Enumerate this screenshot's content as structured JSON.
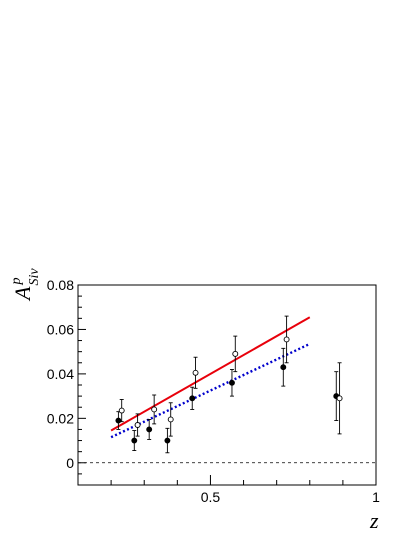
{
  "chart_data": {
    "type": "scatter",
    "xlabel": "z",
    "ylabel": {
      "main": "A",
      "superscript": "p",
      "subscript": "Siv"
    },
    "xlim": [
      0.1,
      1.0
    ],
    "ylim": [
      -0.01,
      0.08
    ],
    "x_ticks": [
      0.5,
      1
    ],
    "x_tick_labels": [
      "0.5",
      "1"
    ],
    "y_ticks": [
      0,
      0.02,
      0.04,
      0.06,
      0.08
    ],
    "y_tick_labels": [
      "0",
      "0.02",
      "0.04",
      "0.06",
      "0.08"
    ],
    "grid": false,
    "reference_line": {
      "y": 0,
      "style": "dashed",
      "color": "#000000"
    },
    "series": [
      {
        "type": "line",
        "style": "solid",
        "color": "#e8000b",
        "x": [
          0.2,
          0.8
        ],
        "y": [
          0.0145,
          0.0655
        ]
      },
      {
        "type": "line",
        "style": "dotted",
        "color": "#0000cc",
        "x": [
          0.2,
          0.8
        ],
        "y": [
          0.0115,
          0.0535
        ]
      },
      {
        "type": "points",
        "marker": "filled-circle",
        "color": "#000000",
        "x": [
          0.222,
          0.27,
          0.315,
          0.37,
          0.445,
          0.565,
          0.72,
          0.88
        ],
        "y": [
          0.019,
          0.01,
          0.015,
          0.01,
          0.029,
          0.036,
          0.043,
          0.03
        ],
        "err": [
          0.004,
          0.0045,
          0.0045,
          0.0055,
          0.005,
          0.006,
          0.0085,
          0.011
        ]
      },
      {
        "type": "points",
        "marker": "open-circle",
        "color": "#000000",
        "x": [
          0.232,
          0.28,
          0.33,
          0.38,
          0.455,
          0.575,
          0.73,
          0.89
        ],
        "y": [
          0.0235,
          0.017,
          0.024,
          0.0195,
          0.0405,
          0.049,
          0.0555,
          0.029
        ],
        "err": [
          0.005,
          0.005,
          0.0065,
          0.0075,
          0.007,
          0.008,
          0.0105,
          0.016
        ]
      }
    ]
  }
}
